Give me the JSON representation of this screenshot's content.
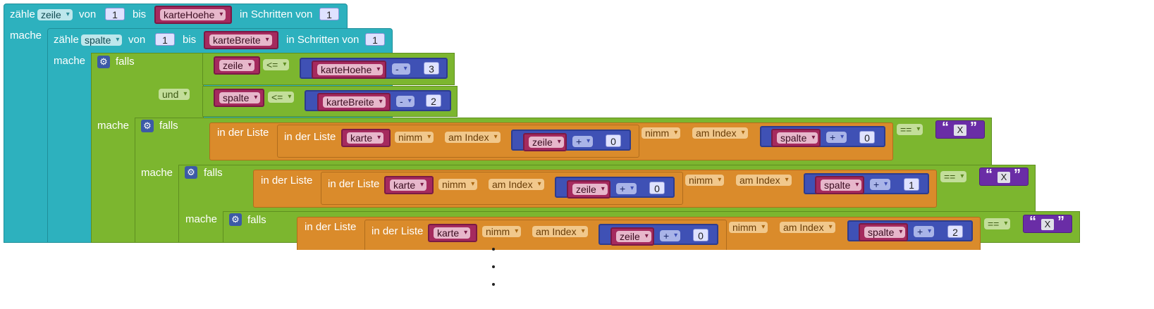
{
  "kw": {
    "zaehle": "zähle",
    "von": "von",
    "bis": "bis",
    "in_schritten_von": "in Schritten von",
    "mache": "mache",
    "falls": "falls",
    "in_der_liste": "in der Liste",
    "nimm": "nimm",
    "am_index": "am Index",
    "und": "und",
    "le": "<=",
    "minus": "-",
    "plus": "+",
    "eq": "=="
  },
  "vars": {
    "zeile": "zeile",
    "spalte": "spalte",
    "karte": "karte",
    "karteHoehe": "karteHoehe",
    "karteBreite": "karteBreite"
  },
  "nums": {
    "n0": "0",
    "n1": "1",
    "n2": "2",
    "n3": "3"
  },
  "text_x": "X",
  "quote_open": "“",
  "quote_close": "”",
  "ellipsis_dot": "."
}
